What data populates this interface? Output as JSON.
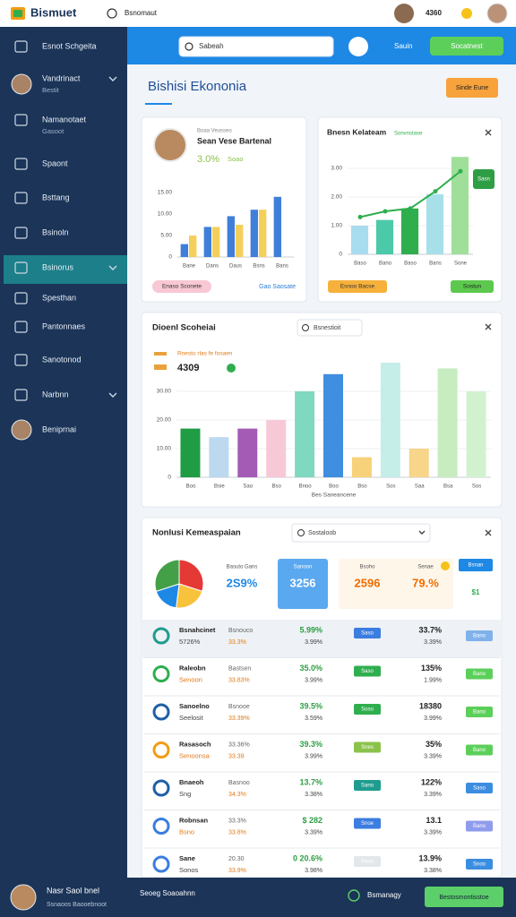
{
  "header": {
    "logo": "Bismuet",
    "tab": "Bsnomaut",
    "count": "4360"
  },
  "sidebar": {
    "active": 6,
    "items": [
      {
        "label": "Esnot Schgeita"
      },
      {
        "label": "Vandrinact",
        "sub": "Bestit"
      },
      {
        "label": "Namanotaet",
        "sub": "Gasoot"
      },
      {
        "label": "Spaont"
      },
      {
        "label": "Bsttang"
      },
      {
        "label": "Bsinoln"
      },
      {
        "label": "Bsinorus"
      },
      {
        "label": "Spesthan"
      },
      {
        "label": "Pantonnaes"
      },
      {
        "label": "Sanotonod"
      },
      {
        "label": "Narbnn"
      },
      {
        "label": "Beniprnai"
      }
    ]
  },
  "toolbar": {
    "search": "Sabeah",
    "user": "Sauin",
    "button": "Socatnest"
  },
  "page": {
    "title": "Bishisi Ekononia",
    "button": "Sinde Eune"
  },
  "card1": {
    "caption": "Boaa Veusseo",
    "name": "Sean Vese Bartenal",
    "stat": "3.0%",
    "stat_label": "Soao",
    "pill": "Enaso Sconete",
    "link": "Gao Saosate"
  },
  "card2": {
    "title": "Bnesn Kelateam",
    "tag": "Sonvnstase",
    "badge": "Sasn",
    "pill": "Esnoo Bacse",
    "button": "Sostun"
  },
  "card3": {
    "title": "Dioenl Scoheiai",
    "search": "Bsnestioit",
    "legend": "Rnesto rlas fe fosaen",
    "value": "4309"
  },
  "card4": {
    "title": "Nonlusi Kemeaspaian",
    "search": "Sostaloob",
    "stats": [
      {
        "label": "Basuto Gans",
        "value": "2S9%"
      },
      {
        "label": "Sanoon",
        "value": "3256"
      },
      {
        "label": "Bsoho",
        "value": "2596"
      },
      {
        "label": "Senae",
        "value": "79.%"
      }
    ],
    "side_button": "Bsnan",
    "side_value": "$1"
  },
  "table": {
    "badge_colors": [
      "#3b7de0",
      "#2fae4e",
      "#2fae4e",
      "#8bc34a",
      "#1f9c8e",
      "#3b7de0",
      "#e3e6ea"
    ],
    "action_colors": [
      "#7fb2ea",
      "#5ccf5a",
      "#5ccf5a",
      "#5ccf5a",
      "#3b8de0",
      "#8f9bec",
      "#3b8de0"
    ],
    "rows": [
      [
        "Bsnahcinet",
        "5726%",
        "Bsnouco",
        "33.3%",
        "5.99%",
        "3.99%",
        "Saso",
        "33.7%",
        "3.39%",
        "Bano"
      ],
      [
        "Raleobn",
        "Senoon",
        "Bastsen",
        "33.83%",
        "35.0%",
        "3.99%",
        "Saso",
        "135%",
        "1.99%",
        "Bano"
      ],
      [
        "Sanoelno",
        "Seelosit",
        "Bsnooe",
        "33.39%",
        "39.5%",
        "3.59%",
        "Soso",
        "18380",
        "3.99%",
        "Bano"
      ],
      [
        "Rasasoch",
        "Senoonsa",
        "33.36%",
        "33.39",
        "39.3%",
        "3.99%",
        "Snes",
        "35%",
        "3.39%",
        "Bano"
      ],
      [
        "Bnaeoh",
        "Sng",
        "Basnoo",
        "34.3%",
        "13.7%",
        "3.38%",
        "Sano",
        "122%",
        "3.39%",
        "Saso"
      ],
      [
        "Robnsan",
        "Bsno",
        "33.3%",
        "33.8%",
        "$ 282",
        "3.39%",
        "Snoe",
        "13.1",
        "3.39%",
        "Bano"
      ],
      [
        "Sane",
        "Sonos",
        "20.30",
        "33.9%",
        "0 20.6%",
        "3.98%",
        "Baoo",
        "13.9%",
        "3.38%",
        "Snoo"
      ]
    ]
  },
  "footer": {
    "name": "Nasr Saol bnel",
    "sub": "Ssnaoos Baooebnoot",
    "text": "Seoeg Soaoahnn",
    "status": "Bsmanagy",
    "button": "Bestosmontisstoe"
  },
  "chart_data": [
    {
      "type": "bar",
      "categories": [
        "Bane",
        "Dans",
        "Daus",
        "Bsns",
        "Bans"
      ],
      "ylim": [
        0,
        15
      ],
      "yticks": [
        0,
        {
          "value": 5,
          "label": "5.00"
        },
        {
          "value": 10,
          "label": "10.00"
        },
        {
          "value": 15,
          "label": "15.00"
        }
      ],
      "grid": false,
      "series": [
        {
          "color": "#3f7fd9",
          "values": [
            3,
            7,
            9.5,
            11,
            14
          ]
        },
        {
          "color": "#f4cf5a",
          "values": [
            5,
            7,
            7.5,
            11,
            null
          ]
        }
      ]
    },
    {
      "type": "bar",
      "categories": [
        "Baso",
        "Bano",
        "Baso",
        "Bans",
        "Sone"
      ],
      "ylim": [
        0,
        3.5
      ],
      "yticks": [
        0,
        {
          "value": 1,
          "label": "1.00"
        },
        {
          "value": 2,
          "label": "2.00"
        },
        {
          "value": 3,
          "label": "3.00"
        }
      ],
      "grid": true,
      "series": [
        {
          "color": "#a8dcef",
          "colors": [
            "#a8dcef",
            "#4cc9a8",
            "#2fae4e",
            "#a8e0ea",
            "#9fdf9a"
          ],
          "values": [
            1.0,
            1.2,
            1.6,
            2.1,
            3.4
          ]
        },
        {
          "type": "line",
          "color": "#2fae4e",
          "values": [
            1.3,
            1.5,
            1.6,
            2.2,
            2.9
          ]
        }
      ]
    },
    {
      "type": "bar",
      "categories": [
        "Boo",
        "Bsie",
        "Sao",
        "Bso",
        "Bnoo",
        "Boo",
        "Bso",
        "Sos",
        "Saa",
        "Bsa",
        "Sos"
      ],
      "xlabel": "Bes Saneancene",
      "ylim": [
        0,
        40
      ],
      "yticks": [
        0,
        {
          "value": 10,
          "label": "10.00"
        },
        {
          "value": 20,
          "label": "20.00"
        },
        {
          "value": 30,
          "label": "30.00"
        }
      ],
      "grid": true,
      "series": [
        {
          "color": "#2fae4e",
          "colors": [
            "#1f9c44",
            "#bcd9ef",
            "#a35bb5",
            "#f7c9d6",
            "#7fd8c0",
            "#3f8ee0",
            "#f7d27a",
            "#c6eee8",
            "#f7d58a",
            "#c7ecc0",
            "#d2f2cf"
          ],
          "values": [
            17,
            14,
            17,
            20,
            30,
            36,
            7,
            40,
            10,
            38,
            30
          ]
        }
      ]
    },
    {
      "type": "pie",
      "values": [
        30,
        22,
        18,
        30
      ],
      "colors": [
        "#e53935",
        "#f9c23c",
        "#1e88e5",
        "#43a047"
      ]
    }
  ]
}
